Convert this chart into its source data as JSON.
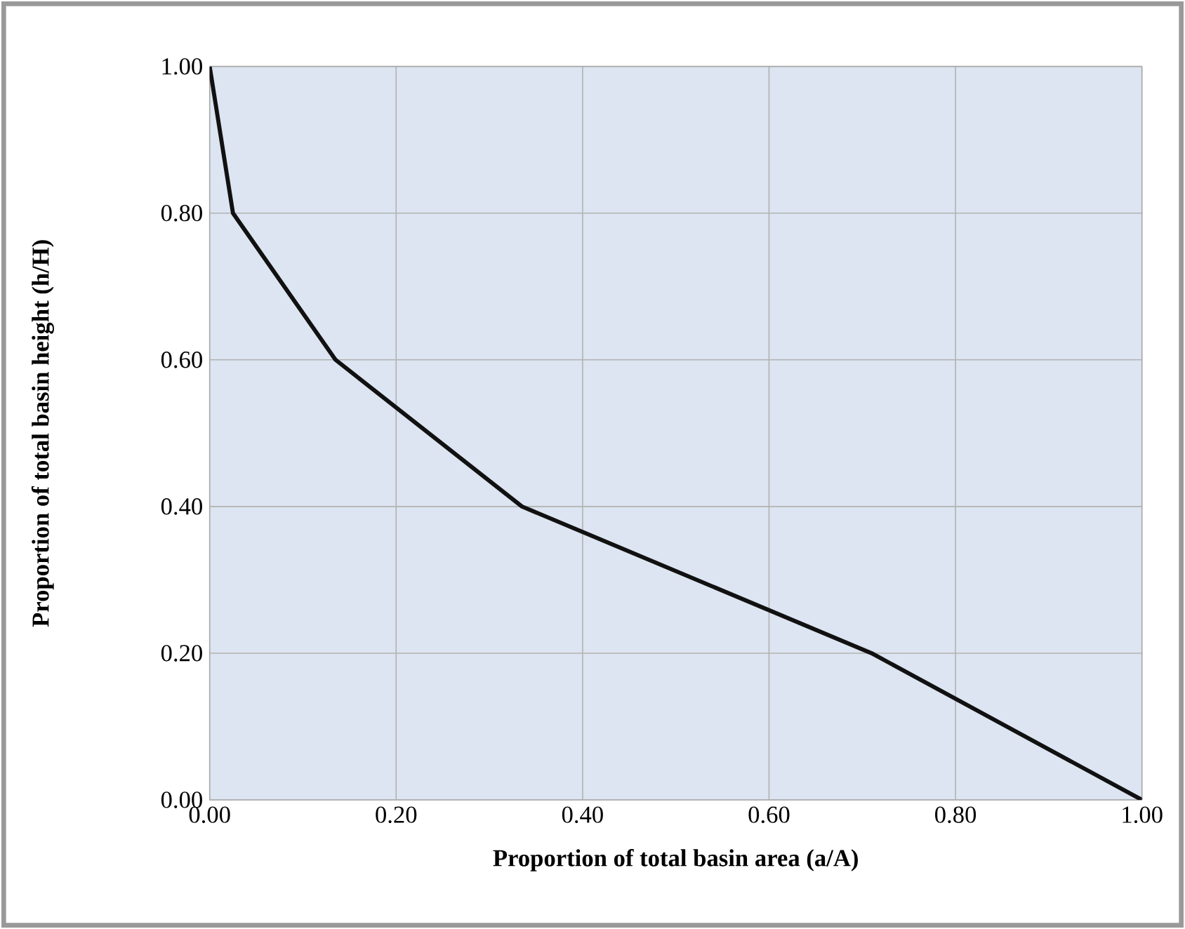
{
  "chart_data": {
    "type": "line",
    "xlabel": "Proportion of total basin area (a/A)",
    "ylabel": "Proportion of total basin height (h/H)",
    "x": [
      0,
      0.025,
      0.135,
      0.335,
      0.71,
      1
    ],
    "series": [
      {
        "color": "#111111",
        "values": [
          1,
          0.8,
          0.6,
          0.4,
          0.2,
          0
        ]
      }
    ],
    "xlim": [
      0,
      1
    ],
    "ylim": [
      0,
      1
    ],
    "xticks": [
      {
        "value": 0,
        "label": "0.00"
      },
      {
        "value": 0.2,
        "label": "0.20"
      },
      {
        "value": 0.4,
        "label": "0.40"
      },
      {
        "value": 0.6,
        "label": "0.60"
      },
      {
        "value": 0.8,
        "label": "0.80"
      },
      {
        "value": 1,
        "label": "1.00"
      }
    ],
    "yticks": [
      {
        "value": 0,
        "label": "0.00"
      },
      {
        "value": 0.2,
        "label": "0.20"
      },
      {
        "value": 0.4,
        "label": "0.40"
      },
      {
        "value": 0.6,
        "label": "0.60"
      },
      {
        "value": 0.8,
        "label": "0.80"
      },
      {
        "value": 1,
        "label": "1.00"
      }
    ],
    "grid": true,
    "line_style": "solid"
  }
}
